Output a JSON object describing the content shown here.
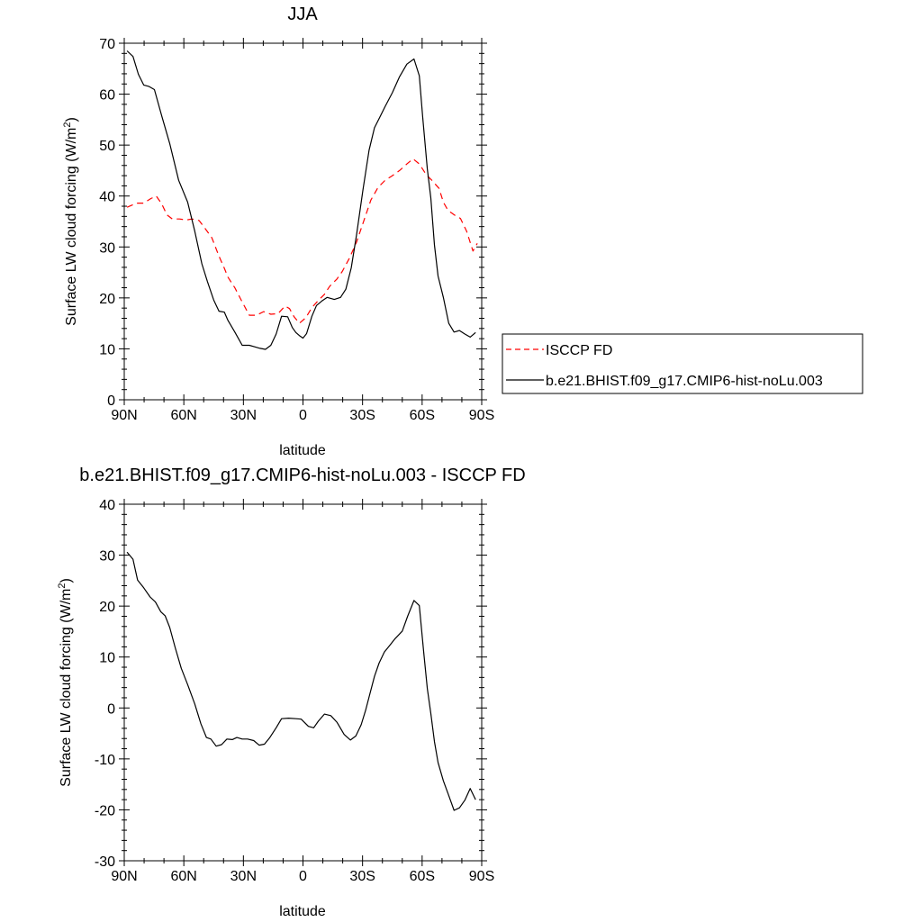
{
  "chart_data": [
    {
      "type": "line",
      "title": "JJA",
      "xlabel": "latitude",
      "ylabel": "Surface LW cloud forcing (W/m",
      "ylabel_sup": "2",
      "ylabel_end": ")",
      "xlim": [
        90,
        -90
      ],
      "ylim": [
        0,
        70
      ],
      "x_ticks": [
        90,
        60,
        30,
        0,
        -30,
        -60,
        -90
      ],
      "x_tick_labels": [
        "90N",
        "60N",
        "30N",
        "0",
        "30S",
        "60S",
        "90S"
      ],
      "y_ticks": [
        0,
        10,
        20,
        30,
        40,
        50,
        60,
        70
      ],
      "y_tick_labels": [
        "0",
        "10",
        "20",
        "30",
        "40",
        "50",
        "60",
        "70"
      ],
      "legend_position": "right",
      "series": [
        {
          "name": "ISCCP FD",
          "color": "#ff0000",
          "dash": "dashed",
          "x": [
            88.6,
            83.8,
            80.2,
            76.6,
            73.9,
            71.2,
            68.5,
            65.8,
            62.2,
            58.6,
            55.9,
            52.3,
            49.6,
            45.9,
            42.3,
            39.6,
            37.8,
            34.2,
            30.6,
            27.0,
            23.4,
            19.8,
            16.2,
            12.6,
            9.0,
            6.8,
            4.5,
            1.8,
            -1.4,
            -4.5,
            -7.7,
            -10.8,
            -13.5,
            -17.1,
            -19.8,
            -23.4,
            -27.0,
            -30.6,
            -34.2,
            -37.8,
            -41.4,
            -45.0,
            -48.6,
            -52.3,
            -55.4,
            -58.6,
            -62.2,
            -64.9,
            -68.5,
            -70.7,
            -73.0,
            -76.6,
            -79.3,
            -82.4,
            -85.6,
            -87.8
          ],
          "y": [
            37.8,
            38.6,
            38.6,
            39.5,
            40.0,
            38.5,
            36.3,
            35.5,
            35.5,
            35.3,
            35.5,
            35.2,
            33.8,
            31.8,
            28.2,
            25.8,
            24.1,
            21.9,
            19.2,
            16.6,
            16.6,
            17.3,
            16.8,
            16.9,
            18.4,
            17.9,
            16.3,
            15.0,
            16.1,
            18.1,
            19.5,
            20.7,
            22.3,
            23.7,
            25.2,
            27.8,
            31.0,
            35.1,
            39.2,
            41.7,
            43.1,
            44.0,
            45.0,
            46.3,
            47.3,
            46.3,
            44.1,
            43.1,
            41.5,
            38.8,
            37.2,
            36.2,
            35.6,
            33.1,
            29.2,
            30.7
          ]
        },
        {
          "name": "b.e21.BHIST.f09_g17.CMIP6-hist-noLu.003",
          "color": "#000000",
          "dash": "solid",
          "x": [
            88.6,
            85.6,
            82.9,
            80.2,
            77.5,
            74.8,
            71.2,
            67.1,
            62.6,
            58.1,
            54.5,
            50.9,
            48.1,
            45.0,
            42.3,
            39.6,
            37.8,
            34.2,
            30.6,
            27.0,
            24.3,
            21.6,
            18.9,
            16.2,
            13.5,
            10.8,
            7.7,
            5.4,
            3.6,
            1.8,
            0.0,
            -1.8,
            -4.5,
            -6.8,
            -9.5,
            -12.2,
            -15.8,
            -18.9,
            -21.6,
            -24.3,
            -27.0,
            -30.2,
            -33.3,
            -36.0,
            -38.7,
            -41.4,
            -45.0,
            -48.6,
            -52.3,
            -55.9,
            -58.6,
            -60.3,
            -62.6,
            -64.4,
            -66.2,
            -68.0,
            -70.7,
            -73.4,
            -76.1,
            -78.8,
            -81.5,
            -84.2,
            -86.9
          ],
          "y": [
            68.5,
            67.4,
            63.9,
            61.8,
            61.5,
            60.9,
            55.8,
            50.3,
            43.1,
            38.8,
            33.1,
            26.7,
            23.2,
            19.6,
            17.4,
            17.2,
            15.6,
            13.2,
            10.7,
            10.7,
            10.4,
            10.1,
            9.9,
            10.7,
            12.9,
            16.4,
            16.3,
            14.2,
            13.2,
            12.6,
            12.1,
            13.0,
            16.4,
            18.5,
            19.4,
            20.1,
            19.7,
            20.1,
            21.7,
            25.9,
            32.5,
            41.2,
            49.0,
            53.4,
            55.5,
            57.6,
            60.3,
            63.4,
            65.9,
            66.9,
            63.6,
            55.4,
            45.3,
            39.6,
            30.4,
            24.3,
            20.1,
            15.0,
            13.3,
            13.6,
            12.9,
            12.3,
            13.2
          ]
        }
      ]
    },
    {
      "type": "line",
      "title": "b.e21.BHIST.f09_g17.CMIP6-hist-noLu.003 - ISCCP FD",
      "xlabel": "latitude",
      "ylabel": "Surface LW cloud forcing (W/m",
      "ylabel_sup": "2",
      "ylabel_end": ")",
      "xlim": [
        90,
        -90
      ],
      "ylim": [
        -30,
        40
      ],
      "x_ticks": [
        90,
        60,
        30,
        0,
        -30,
        -60,
        -90
      ],
      "x_tick_labels": [
        "90N",
        "60N",
        "30N",
        "0",
        "30S",
        "60S",
        "90S"
      ],
      "y_ticks": [
        -30,
        -20,
        -10,
        0,
        10,
        20,
        30,
        40
      ],
      "y_tick_labels": [
        "-30",
        "-20",
        "-10",
        "0",
        "10",
        "20",
        "30",
        "40"
      ],
      "series": [
        {
          "color": "#000000",
          "dash": "solid",
          "x": [
            88.6,
            85.6,
            83.3,
            80.2,
            77.0,
            74.3,
            71.6,
            69.4,
            67.1,
            64.4,
            61.3,
            58.1,
            54.5,
            51.4,
            48.6,
            46.4,
            43.7,
            41.0,
            38.3,
            35.6,
            33.3,
            30.6,
            27.9,
            24.8,
            22.1,
            19.4,
            16.7,
            13.5,
            10.8,
            7.2,
            3.6,
            0.9,
            -2.7,
            -5.4,
            -7.7,
            -10.8,
            -14.0,
            -17.1,
            -20.7,
            -23.9,
            -26.6,
            -29.3,
            -31.5,
            -33.8,
            -36.0,
            -38.3,
            -41.0,
            -43.7,
            -46.4,
            -50.0,
            -52.7,
            -55.9,
            -58.6,
            -60.8,
            -62.6,
            -64.4,
            -66.2,
            -68.0,
            -70.7,
            -73.4,
            -76.1,
            -78.8,
            -81.5,
            -84.2,
            -86.9
          ],
          "y": [
            30.6,
            29.2,
            25.1,
            23.6,
            21.8,
            20.8,
            18.9,
            18.1,
            15.8,
            11.9,
            7.8,
            4.6,
            0.8,
            -3.1,
            -5.8,
            -6.1,
            -7.5,
            -7.2,
            -6.1,
            -6.2,
            -5.8,
            -6.1,
            -6.1,
            -6.4,
            -7.3,
            -7.1,
            -5.8,
            -3.9,
            -2.1,
            -2.0,
            -2.1,
            -2.2,
            -3.6,
            -3.9,
            -2.6,
            -1.2,
            -1.5,
            -2.8,
            -5.2,
            -6.3,
            -5.5,
            -3.3,
            -0.5,
            2.9,
            6.2,
            8.8,
            11.0,
            12.3,
            13.6,
            15.1,
            18.0,
            21.1,
            20.1,
            10.9,
            3.8,
            -1.1,
            -6.6,
            -10.7,
            -14.3,
            -17.2,
            -20.1,
            -19.6,
            -18.1,
            -15.8,
            -18.0
          ]
        }
      ]
    }
  ]
}
